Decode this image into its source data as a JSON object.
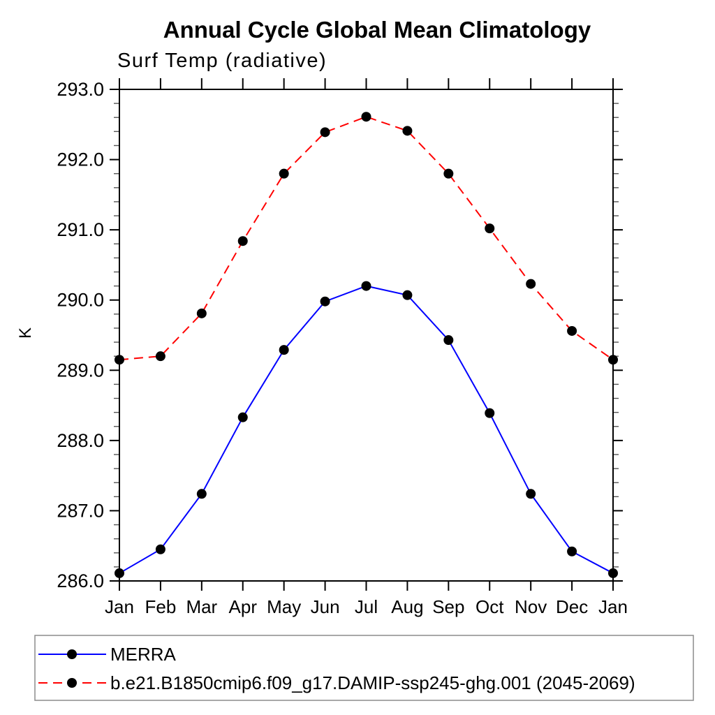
{
  "chart_data": {
    "type": "line",
    "title": "Annual Cycle Global Mean Climatology",
    "subtitle": "Surf Temp (radiative)",
    "xlabel": "",
    "ylabel": "K",
    "categories": [
      "Jan",
      "Feb",
      "Mar",
      "Apr",
      "May",
      "Jun",
      "Jul",
      "Aug",
      "Sep",
      "Oct",
      "Nov",
      "Dec",
      "Jan"
    ],
    "ylim": [
      286.0,
      293.0
    ],
    "ytick_step": 1.0,
    "yminor_step": 0.2,
    "ytick_labels": [
      "286.0",
      "287.0",
      "288.0",
      "289.0",
      "290.0",
      "291.0",
      "292.0",
      "293.0"
    ],
    "grid": false,
    "legend_position": "bottom-box",
    "axis_color": "#000000",
    "marker_shape": "filled-circle",
    "series": [
      {
        "name": "MERRA",
        "color": "#0000ff",
        "line_style": "solid",
        "marker_color": "#000000",
        "values": [
          286.11,
          286.45,
          287.24,
          288.33,
          289.29,
          289.98,
          290.2,
          290.07,
          289.43,
          288.39,
          287.24,
          286.42,
          286.11
        ]
      },
      {
        "name": "b.e21.B1850cmip6.f09_g17.DAMIP-ssp245-ghg.001 (2045-2069)",
        "color": "#ff0000",
        "line_style": "dashed",
        "marker_color": "#000000",
        "values": [
          289.15,
          289.2,
          289.81,
          290.84,
          291.8,
          292.39,
          292.61,
          292.41,
          291.8,
          291.02,
          290.23,
          289.56,
          289.15
        ]
      }
    ]
  }
}
